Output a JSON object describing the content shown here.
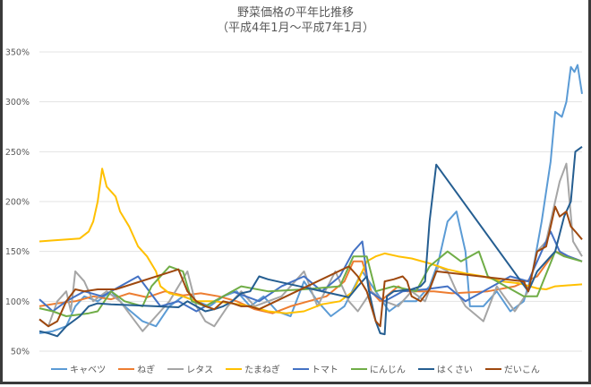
{
  "chart_data": {
    "type": "line",
    "title": "野菜価格の平年比推移",
    "subtitle": "（平成4年1月～平成7年1月）",
    "xlabel": "",
    "ylabel": "",
    "xlim": [
      0,
      121
    ],
    "ylim": [
      50,
      350
    ],
    "yticks": [
      "50%",
      "100%",
      "150%",
      "200%",
      "250%",
      "300%",
      "350%"
    ],
    "ytick_values": [
      50,
      100,
      150,
      200,
      250,
      300,
      350
    ],
    "grid": true,
    "legend_position": "bottom",
    "series": [
      {
        "name": "キャベツ",
        "color": "#5B9BD5",
        "points": [
          [
            0,
            68
          ],
          [
            3,
            70
          ],
          [
            6,
            75
          ],
          [
            8,
            95
          ],
          [
            10,
            105
          ],
          [
            13,
            100
          ],
          [
            16,
            110
          ],
          [
            19,
            95
          ],
          [
            23,
            80
          ],
          [
            26,
            75
          ],
          [
            29,
            95
          ],
          [
            32,
            105
          ],
          [
            35,
            100
          ],
          [
            38,
            95
          ],
          [
            41,
            105
          ],
          [
            44,
            110
          ],
          [
            47,
            95
          ],
          [
            50,
            105
          ],
          [
            53,
            90
          ],
          [
            56,
            85
          ],
          [
            59,
            120
          ],
          [
            62,
            100
          ],
          [
            65,
            85
          ],
          [
            68,
            95
          ],
          [
            72,
            130
          ],
          [
            75,
            110
          ],
          [
            78,
            90
          ],
          [
            81,
            100
          ],
          [
            84,
            100
          ],
          [
            87,
            115
          ],
          [
            89,
            140
          ],
          [
            91,
            180
          ],
          [
            93,
            190
          ],
          [
            95,
            150
          ],
          [
            96,
            95
          ],
          [
            99,
            95
          ],
          [
            102,
            110
          ],
          [
            105,
            90
          ],
          [
            108,
            100
          ],
          [
            110,
            130
          ],
          [
            112,
            180
          ],
          [
            114,
            240
          ],
          [
            115,
            290
          ],
          [
            116.5,
            285
          ],
          [
            117.5,
            300
          ],
          [
            118.5,
            335
          ],
          [
            119.3,
            330
          ],
          [
            120,
            337
          ],
          [
            121,
            308
          ]
        ]
      },
      {
        "name": "ねぎ",
        "color": "#ED7D31",
        "points": [
          [
            0,
            95
          ],
          [
            4,
            98
          ],
          [
            8,
            100
          ],
          [
            12,
            105
          ],
          [
            16,
            102
          ],
          [
            20,
            108
          ],
          [
            24,
            104
          ],
          [
            28,
            110
          ],
          [
            32,
            106
          ],
          [
            36,
            108
          ],
          [
            40,
            105
          ],
          [
            44,
            100
          ],
          [
            48,
            92
          ],
          [
            52,
            88
          ],
          [
            56,
            95
          ],
          [
            60,
            100
          ],
          [
            64,
            105
          ],
          [
            68,
            120
          ],
          [
            70,
            140
          ],
          [
            72,
            140
          ],
          [
            74,
            110
          ],
          [
            76,
            100
          ],
          [
            80,
            115
          ],
          [
            82,
            110
          ],
          [
            88,
            110
          ],
          [
            92,
            108
          ],
          [
            100,
            110
          ],
          [
            106,
            115
          ],
          [
            111,
            125
          ],
          [
            115,
            150
          ],
          [
            118,
            145
          ],
          [
            121,
            140
          ]
        ]
      },
      {
        "name": "レタス",
        "color": "#A5A5A5",
        "points": [
          [
            0,
            82
          ],
          [
            2,
            75
          ],
          [
            4,
            100
          ],
          [
            6,
            110
          ],
          [
            7,
            90
          ],
          [
            8,
            130
          ],
          [
            10,
            120
          ],
          [
            12,
            100
          ],
          [
            15,
            110
          ],
          [
            18,
            100
          ],
          [
            23,
            70
          ],
          [
            26,
            85
          ],
          [
            29,
            100
          ],
          [
            33,
            130
          ],
          [
            35,
            95
          ],
          [
            37,
            80
          ],
          [
            39,
            75
          ],
          [
            42,
            95
          ],
          [
            45,
            110
          ],
          [
            48,
            95
          ],
          [
            51,
            100
          ],
          [
            54,
            105
          ],
          [
            59,
            130
          ],
          [
            62,
            95
          ],
          [
            66,
            130
          ],
          [
            69,
            100
          ],
          [
            71,
            90
          ],
          [
            74,
            110
          ],
          [
            77,
            100
          ],
          [
            80,
            95
          ],
          [
            83,
            110
          ],
          [
            86,
            100
          ],
          [
            89,
            135
          ],
          [
            91,
            130
          ],
          [
            93,
            110
          ],
          [
            95,
            95
          ],
          [
            99,
            80
          ],
          [
            102,
            115
          ],
          [
            106,
            90
          ],
          [
            109,
            110
          ],
          [
            111,
            150
          ],
          [
            113,
            160
          ],
          [
            116,
            220
          ],
          [
            117.5,
            238
          ],
          [
            119,
            160
          ],
          [
            121,
            145
          ]
        ]
      },
      {
        "name": "たまねぎ",
        "color": "#FFC000",
        "points": [
          [
            0,
            160
          ],
          [
            3,
            161
          ],
          [
            9,
            163
          ],
          [
            11,
            170
          ],
          [
            12,
            180
          ],
          [
            13,
            200
          ],
          [
            14,
            233
          ],
          [
            15,
            215
          ],
          [
            17,
            205
          ],
          [
            18,
            190
          ],
          [
            20,
            175
          ],
          [
            22,
            155
          ],
          [
            24,
            145
          ],
          [
            26,
            130
          ],
          [
            27,
            115
          ],
          [
            29,
            108
          ],
          [
            32,
            105
          ],
          [
            35,
            100
          ],
          [
            39,
            100
          ],
          [
            43,
            98
          ],
          [
            47,
            95
          ],
          [
            51,
            90
          ],
          [
            55,
            88
          ],
          [
            59,
            90
          ],
          [
            63,
            97
          ],
          [
            67,
            100
          ],
          [
            70,
            110
          ],
          [
            73,
            140
          ],
          [
            75,
            145
          ],
          [
            77,
            148
          ],
          [
            80,
            145
          ],
          [
            83,
            143
          ],
          [
            87,
            138
          ],
          [
            91,
            132
          ],
          [
            95,
            128
          ],
          [
            99,
            125
          ],
          [
            103,
            120
          ],
          [
            107,
            118
          ],
          [
            111,
            113
          ],
          [
            113,
            112
          ],
          [
            115,
            115
          ],
          [
            121,
            117
          ]
        ]
      },
      {
        "name": "トマト",
        "color": "#4472C4",
        "points": [
          [
            0,
            102
          ],
          [
            3,
            90
          ],
          [
            6,
            100
          ],
          [
            10,
            110
          ],
          [
            14,
            105
          ],
          [
            18,
            115
          ],
          [
            22,
            125
          ],
          [
            27,
            95
          ],
          [
            31,
            100
          ],
          [
            35,
            90
          ],
          [
            39,
            100
          ],
          [
            43,
            110
          ],
          [
            49,
            100
          ],
          [
            54,
            115
          ],
          [
            59,
            125
          ],
          [
            63,
            110
          ],
          [
            67,
            125
          ],
          [
            70,
            150
          ],
          [
            72,
            160
          ],
          [
            73.5,
            110
          ],
          [
            77,
            100
          ],
          [
            81,
            110
          ],
          [
            86,
            112
          ],
          [
            91,
            115
          ],
          [
            95,
            100
          ],
          [
            99,
            110
          ],
          [
            105,
            125
          ],
          [
            109,
            120
          ],
          [
            112,
            150
          ],
          [
            114,
            170
          ],
          [
            116,
            150
          ],
          [
            118,
            145
          ],
          [
            121,
            140
          ]
        ]
      },
      {
        "name": "にんじん",
        "color": "#70AD47",
        "points": [
          [
            0,
            93
          ],
          [
            3,
            90
          ],
          [
            6,
            85
          ],
          [
            11,
            88
          ],
          [
            13,
            90
          ],
          [
            16,
            110
          ],
          [
            19,
            100
          ],
          [
            23,
            95
          ],
          [
            25,
            115
          ],
          [
            29,
            135
          ],
          [
            32,
            130
          ],
          [
            34,
            100
          ],
          [
            37,
            95
          ],
          [
            41,
            105
          ],
          [
            45,
            115
          ],
          [
            51,
            110
          ],
          [
            59,
            112
          ],
          [
            67,
            115
          ],
          [
            70,
            145
          ],
          [
            73,
            145
          ],
          [
            75,
            110
          ],
          [
            79,
            115
          ],
          [
            84,
            110
          ],
          [
            87,
            135
          ],
          [
            91,
            150
          ],
          [
            94,
            140
          ],
          [
            98,
            150
          ],
          [
            100,
            125
          ],
          [
            104,
            115
          ],
          [
            108,
            105
          ],
          [
            111,
            105
          ],
          [
            115,
            150
          ],
          [
            117,
            145
          ],
          [
            121,
            140
          ]
        ]
      },
      {
        "name": "はくさい",
        "color": "#255E91",
        "points": [
          [
            0,
            70
          ],
          [
            2,
            68
          ],
          [
            4,
            65
          ],
          [
            6,
            75
          ],
          [
            9,
            85
          ],
          [
            11,
            95
          ],
          [
            13,
            98
          ],
          [
            16,
            97
          ],
          [
            21,
            96
          ],
          [
            26,
            95
          ],
          [
            31,
            94
          ],
          [
            33,
            100
          ],
          [
            35,
            95
          ],
          [
            37,
            90
          ],
          [
            39,
            92
          ],
          [
            41,
            95
          ],
          [
            43,
            100
          ],
          [
            45,
            108
          ],
          [
            47,
            110
          ],
          [
            49,
            125
          ],
          [
            51,
            122
          ],
          [
            55,
            118
          ],
          [
            59,
            114
          ],
          [
            63,
            110
          ],
          [
            69,
            104
          ],
          [
            71,
            115
          ],
          [
            73,
            125
          ],
          [
            73.5,
            110
          ],
          [
            75,
            80
          ],
          [
            76,
            68
          ],
          [
            77,
            67
          ],
          [
            77.5,
            105
          ],
          [
            79,
            110
          ],
          [
            83,
            112
          ],
          [
            85,
            115
          ],
          [
            86,
            120
          ],
          [
            87,
            180
          ],
          [
            88.5,
            237
          ],
          [
            109,
            110
          ],
          [
            111,
            130
          ],
          [
            113,
            140
          ],
          [
            115,
            150
          ],
          [
            117,
            185
          ],
          [
            118.5,
            200
          ],
          [
            119.5,
            250
          ],
          [
            121,
            255
          ]
        ]
      },
      {
        "name": "だいこん",
        "color": "#9E480E",
        "points": [
          [
            0,
            82
          ],
          [
            2,
            75
          ],
          [
            4,
            80
          ],
          [
            6,
            100
          ],
          [
            8,
            112
          ],
          [
            10,
            110
          ],
          [
            13,
            112
          ],
          [
            17,
            112
          ],
          [
            31,
            132
          ],
          [
            33,
            110
          ],
          [
            35,
            100
          ],
          [
            37,
            95
          ],
          [
            39,
            92
          ],
          [
            41,
            100
          ],
          [
            43,
            98
          ],
          [
            45,
            95
          ],
          [
            47,
            95
          ],
          [
            49,
            92
          ],
          [
            69,
            135
          ],
          [
            71,
            125
          ],
          [
            73,
            110
          ],
          [
            75,
            80
          ],
          [
            76,
            75
          ],
          [
            77,
            120
          ],
          [
            79,
            122
          ],
          [
            81,
            125
          ],
          [
            82,
            120
          ],
          [
            83,
            105
          ],
          [
            85,
            100
          ],
          [
            87,
            112
          ],
          [
            88.5,
            130
          ],
          [
            108,
            120
          ],
          [
            109,
            110
          ],
          [
            111,
            150
          ],
          [
            113,
            155
          ],
          [
            115,
            195
          ],
          [
            116,
            185
          ],
          [
            117.5,
            190
          ],
          [
            118.5,
            175
          ],
          [
            119.5,
            170
          ],
          [
            121,
            162
          ]
        ]
      }
    ]
  }
}
